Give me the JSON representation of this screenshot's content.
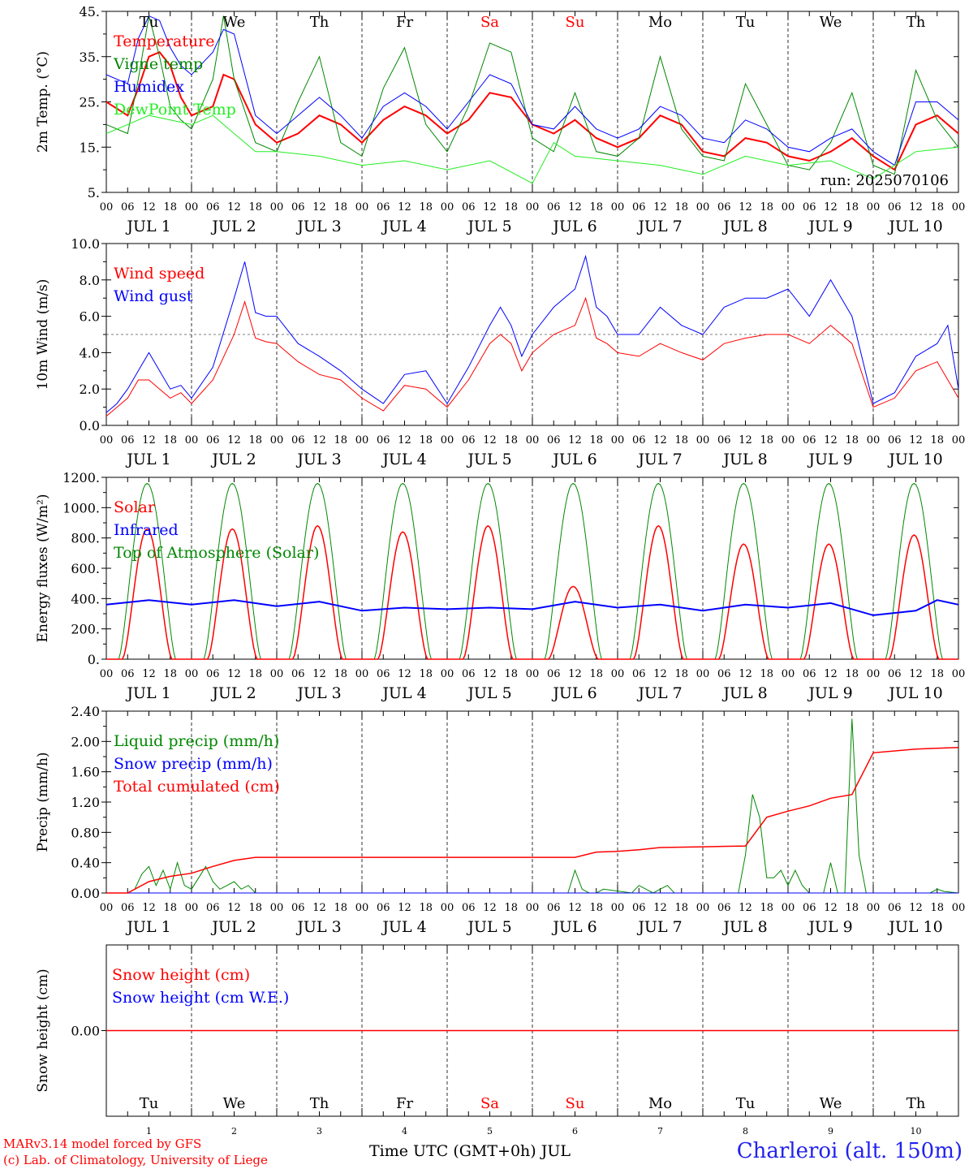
{
  "chart_data": [
    {
      "type": "line",
      "ylabel": "2m Temp. (°C)",
      "ylim": [
        5,
        45
      ],
      "yticks": [
        "5.",
        "15.",
        "25.",
        "35.",
        "45."
      ],
      "ytick_values": [
        5,
        15,
        25,
        35,
        45
      ],
      "day_labels": [
        {
          "text": "Tu",
          "color": "#000000"
        },
        {
          "text": "We",
          "color": "#000000"
        },
        {
          "text": "Th",
          "color": "#000000"
        },
        {
          "text": "Fr",
          "color": "#000000"
        },
        {
          "text": "Sa",
          "color": "#ff0000"
        },
        {
          "text": "Su",
          "color": "#ff0000"
        },
        {
          "text": "Mo",
          "color": "#000000"
        },
        {
          "text": "Tu",
          "color": "#000000"
        },
        {
          "text": "We",
          "color": "#000000"
        },
        {
          "text": "Th",
          "color": "#000000"
        }
      ],
      "annotation": "run: 2025070106",
      "legend": [
        {
          "name": "Temperature",
          "color": "#ff0000"
        },
        {
          "name": "Vigne temp",
          "color": "#008800"
        },
        {
          "name": "Humidex",
          "color": "#0000ff"
        },
        {
          "name": "DewPoint Temp",
          "color": "#22ee22"
        }
      ],
      "series": [
        {
          "name": "Temperature",
          "color": "#ff0000",
          "width": 2,
          "x": [
            0,
            6,
            9,
            12,
            15,
            18,
            21,
            24,
            30,
            33,
            36,
            42,
            48,
            54,
            60,
            66,
            72,
            78,
            84,
            90,
            96,
            102,
            108,
            114,
            120,
            126,
            132,
            138,
            144,
            150,
            156,
            162,
            168,
            174,
            180,
            186,
            192,
            198,
            204,
            210,
            216,
            222,
            228,
            234,
            240
          ],
          "y": [
            25,
            22,
            28,
            35,
            36,
            33,
            26,
            22,
            24,
            31,
            30,
            20,
            16,
            18,
            22,
            20,
            16,
            21,
            24,
            22,
            18,
            21,
            27,
            26,
            20,
            18,
            21,
            17,
            15,
            17,
            22,
            20,
            14,
            13,
            17,
            16,
            13,
            12,
            14,
            17,
            13,
            10,
            20,
            22,
            18
          ]
        },
        {
          "name": "Vigne temp",
          "color": "#008800",
          "width": 1,
          "x": [
            0,
            6,
            9,
            12,
            15,
            18,
            21,
            24,
            30,
            33,
            36,
            42,
            48,
            54,
            60,
            66,
            72,
            78,
            84,
            90,
            96,
            102,
            108,
            114,
            120,
            126,
            132,
            138,
            144,
            150,
            156,
            162,
            168,
            174,
            180,
            186,
            192,
            198,
            204,
            210,
            216,
            222,
            228,
            234,
            240
          ],
          "y": [
            20,
            18,
            30,
            44,
            35,
            24,
            21,
            19,
            30,
            44,
            30,
            16,
            14,
            25,
            35,
            16,
            13,
            28,
            37,
            20,
            14,
            24,
            38,
            36,
            17,
            14,
            27,
            14,
            13,
            17,
            35,
            19,
            13,
            12,
            29,
            20,
            11,
            10,
            16,
            27,
            11,
            9,
            32,
            21,
            15
          ]
        },
        {
          "name": "Humidex",
          "color": "#0000ff",
          "width": 1,
          "x": [
            0,
            6,
            9,
            12,
            15,
            18,
            21,
            24,
            30,
            33,
            36,
            42,
            48,
            54,
            60,
            66,
            72,
            78,
            84,
            90,
            96,
            102,
            108,
            114,
            120,
            126,
            132,
            138,
            144,
            150,
            156,
            162,
            168,
            174,
            180,
            186,
            192,
            198,
            204,
            210,
            216,
            222,
            228,
            234,
            240
          ],
          "y": [
            31,
            29,
            39,
            44,
            43,
            37,
            33,
            31,
            36,
            41,
            40,
            22,
            18,
            22,
            26,
            22,
            17,
            24,
            27,
            24,
            19,
            25,
            31,
            29,
            20,
            19,
            24,
            19,
            17,
            19,
            24,
            22,
            17,
            16,
            21,
            19,
            15,
            14,
            17,
            19,
            14,
            11,
            25,
            25,
            21
          ]
        },
        {
          "name": "DewPoint Temp",
          "color": "#22ee22",
          "width": 1,
          "x": [
            0,
            6,
            12,
            18,
            24,
            30,
            36,
            42,
            48,
            60,
            72,
            84,
            96,
            108,
            120,
            126,
            132,
            144,
            156,
            168,
            180,
            192,
            204,
            216,
            228,
            240
          ],
          "y": [
            18,
            20,
            22,
            21,
            20,
            22,
            18,
            14,
            14,
            13,
            11,
            12,
            10,
            12,
            7,
            16,
            13,
            12,
            11,
            9,
            13,
            11,
            12,
            8,
            14,
            15
          ]
        }
      ]
    },
    {
      "type": "line",
      "ylabel": "10m Wind (m/s)",
      "ylim": [
        0,
        10
      ],
      "yticks": [
        "0.0",
        "2.0",
        "4.0",
        "6.0",
        "8.0",
        "10.0"
      ],
      "ytick_values": [
        0,
        2,
        4,
        6,
        8,
        10
      ],
      "reference_line": 5,
      "legend": [
        {
          "name": "Wind speed",
          "color": "#ff0000"
        },
        {
          "name": "Wind gust",
          "color": "#0000ff"
        }
      ],
      "series": [
        {
          "name": "Wind speed",
          "color": "#ff0000",
          "width": 1,
          "x": [
            0,
            3,
            6,
            9,
            12,
            15,
            18,
            21,
            24,
            30,
            36,
            39,
            42,
            45,
            48,
            54,
            60,
            66,
            72,
            78,
            84,
            90,
            96,
            102,
            108,
            111,
            114,
            117,
            120,
            126,
            132,
            135,
            138,
            141,
            144,
            150,
            156,
            162,
            168,
            174,
            180,
            186,
            192,
            198,
            204,
            210,
            216,
            222,
            228,
            234,
            237,
            240
          ],
          "y": [
            0.5,
            1,
            1.5,
            2.5,
            2.5,
            2,
            1.5,
            1.8,
            1.2,
            2.5,
            5,
            6.8,
            4.8,
            4.6,
            4.5,
            3.5,
            2.8,
            2.5,
            1.5,
            0.8,
            2.2,
            2,
            1,
            2.5,
            4.5,
            5,
            4.5,
            3,
            4,
            5,
            5.5,
            7,
            4.8,
            4.5,
            4,
            3.8,
            4.5,
            4,
            3.6,
            4.5,
            4.8,
            5,
            5,
            4.5,
            5.5,
            4.5,
            1,
            1.5,
            3,
            3.5,
            2.5,
            1.5
          ]
        },
        {
          "name": "Wind gust",
          "color": "#0000ff",
          "width": 1,
          "x": [
            0,
            3,
            6,
            9,
            12,
            15,
            18,
            21,
            24,
            30,
            36,
            39,
            42,
            45,
            48,
            54,
            60,
            66,
            72,
            78,
            84,
            90,
            96,
            102,
            108,
            111,
            114,
            117,
            120,
            126,
            132,
            135,
            138,
            141,
            144,
            150,
            156,
            162,
            168,
            174,
            180,
            186,
            192,
            198,
            204,
            210,
            216,
            222,
            228,
            234,
            237,
            240
          ],
          "y": [
            0.7,
            1.2,
            2,
            3,
            4,
            3,
            2,
            2.2,
            1.5,
            3.2,
            7,
            9,
            6.2,
            6,
            6,
            4.5,
            3.8,
            3,
            2,
            1.2,
            2.8,
            3,
            1.2,
            3.2,
            5.5,
            6.5,
            5.5,
            3.8,
            5,
            6.5,
            7.5,
            9.3,
            6.5,
            6,
            5,
            5,
            6.5,
            5.5,
            5,
            6.5,
            7,
            7,
            7.5,
            6,
            8,
            6,
            1.2,
            1.8,
            3.8,
            4.5,
            5.5,
            2
          ]
        }
      ]
    },
    {
      "type": "line",
      "ylabel": "Energy fluxes (W/m²)",
      "ylim": [
        0,
        1200
      ],
      "yticks": [
        "0.",
        "200.",
        "400.",
        "600.",
        "800.",
        "1000.",
        "1200."
      ],
      "ytick_values": [
        0,
        200,
        400,
        600,
        800,
        1000,
        1200
      ],
      "legend": [
        {
          "name": "Solar",
          "color": "#ff0000"
        },
        {
          "name": "Infrared",
          "color": "#0000ff"
        },
        {
          "name": "Top of Atmosphere (Solar)",
          "color": "#008800"
        }
      ],
      "toa_peak": 1160,
      "solar_peaks": [
        860,
        860,
        880,
        840,
        880,
        480,
        880,
        760,
        760,
        820
      ],
      "series": [
        {
          "name": "Infrared",
          "color": "#0000ff",
          "width": 2,
          "x": [
            0,
            12,
            24,
            36,
            48,
            60,
            72,
            84,
            96,
            108,
            120,
            132,
            144,
            156,
            168,
            180,
            192,
            204,
            216,
            228,
            234,
            240
          ],
          "y": [
            360,
            390,
            360,
            390,
            350,
            380,
            320,
            340,
            330,
            340,
            330,
            380,
            340,
            360,
            320,
            360,
            340,
            370,
            290,
            320,
            390,
            360
          ]
        }
      ]
    },
    {
      "type": "line",
      "ylabel": "Precip (mm/h)",
      "ylim": [
        0,
        2.4
      ],
      "yticks": [
        "0.00",
        "0.40",
        "0.80",
        "1.20",
        "1.60",
        "2.00",
        "2.40"
      ],
      "ytick_values": [
        0,
        0.4,
        0.8,
        1.2,
        1.6,
        2.0,
        2.4
      ],
      "legend": [
        {
          "name": "Liquid precip (mm/h)",
          "color": "#008800"
        },
        {
          "name": "Snow precip (mm/h)",
          "color": "#0000ff"
        },
        {
          "name": "Total cumulated (cm)",
          "color": "#ff0000"
        }
      ],
      "series": [
        {
          "name": "Liquid precip (mm/h)",
          "color": "#008800",
          "width": 1,
          "x": [
            0,
            6,
            8,
            10,
            12,
            14,
            16,
            18,
            20,
            22,
            24,
            26,
            28,
            30,
            32,
            34,
            36,
            38,
            40,
            42,
            44,
            130,
            132,
            134,
            136,
            138,
            140,
            148,
            150,
            152,
            154,
            156,
            158,
            160,
            178,
            180,
            182,
            184,
            186,
            188,
            190,
            192,
            194,
            196,
            198,
            200,
            202,
            204,
            206,
            208,
            210,
            212,
            214,
            232,
            234,
            236,
            240
          ],
          "y": [
            0,
            0,
            0.05,
            0.25,
            0.35,
            0.1,
            0.3,
            0.05,
            0.4,
            0.1,
            0.05,
            0.2,
            0.35,
            0.15,
            0.05,
            0.1,
            0.15,
            0.05,
            0.1,
            0,
            0,
            0,
            0.3,
            0.05,
            0,
            0,
            0.05,
            0,
            0.1,
            0.05,
            0,
            0.05,
            0.1,
            0,
            0,
            0.5,
            1.3,
            1,
            0.2,
            0.2,
            0.3,
            0.1,
            0.3,
            0.1,
            0,
            0,
            0,
            0.4,
            0,
            0,
            2.3,
            0.5,
            0,
            0,
            0.05,
            0.02,
            0
          ]
        },
        {
          "name": "Snow precip (mm/h)",
          "color": "#0000ff",
          "width": 1,
          "x": [
            0,
            240
          ],
          "y": [
            0,
            0
          ]
        },
        {
          "name": "Total cumulated (cm)",
          "color": "#ff0000",
          "width": 1.5,
          "x": [
            0,
            6,
            12,
            18,
            24,
            30,
            36,
            42,
            48,
            72,
            96,
            120,
            132,
            138,
            144,
            150,
            156,
            168,
            180,
            186,
            192,
            198,
            204,
            210,
            216,
            228,
            240
          ],
          "y": [
            0,
            0,
            0.15,
            0.22,
            0.26,
            0.35,
            0.43,
            0.47,
            0.47,
            0.47,
            0.47,
            0.47,
            0.47,
            0.54,
            0.55,
            0.57,
            0.6,
            0.61,
            0.62,
            1.0,
            1.08,
            1.15,
            1.25,
            1.3,
            1.85,
            1.9,
            1.92
          ]
        }
      ]
    },
    {
      "type": "line",
      "ylabel": "Snow height (cm)",
      "ylim": [
        -1,
        1
      ],
      "yticks": [
        "0.00"
      ],
      "ytick_values": [
        0
      ],
      "legend": [
        {
          "name": "Snow height (cm)",
          "color": "#ff0000"
        },
        {
          "name": "Snow height (cm W.E.)",
          "color": "#0000ff"
        }
      ],
      "series": [
        {
          "name": "Snow height (cm)",
          "color": "#ff0000",
          "width": 1.5,
          "x": [
            0,
            240
          ],
          "y": [
            0,
            0
          ]
        }
      ]
    }
  ],
  "x_axis": {
    "hour_ticks": [
      "00",
      "06",
      "12",
      "18"
    ],
    "date_labels": [
      "JUL  1",
      "JUL  2",
      "JUL  3",
      "JUL  4",
      "JUL  5",
      "JUL  6",
      "JUL  7",
      "JUL  8",
      "JUL  9",
      "JUL 10"
    ],
    "final_tick": "00",
    "bottom_day_numbers": [
      "1",
      "2",
      "3",
      "4",
      "5",
      "6",
      "7",
      "8",
      "9",
      "10"
    ],
    "bottom_day_labels": [
      {
        "text": "Tu",
        "color": "#000000"
      },
      {
        "text": "We",
        "color": "#000000"
      },
      {
        "text": "Th",
        "color": "#000000"
      },
      {
        "text": "Fr",
        "color": "#000000"
      },
      {
        "text": "Sa",
        "color": "#ff0000"
      },
      {
        "text": "Su",
        "color": "#ff0000"
      },
      {
        "text": "Mo",
        "color": "#000000"
      },
      {
        "text": "Tu",
        "color": "#000000"
      },
      {
        "text": "We",
        "color": "#000000"
      },
      {
        "text": "Th",
        "color": "#000000"
      }
    ]
  },
  "footer": {
    "credit_line1": "MARv3.14 model forced by GFS",
    "credit_line2": "(c) Lab. of Climatology, University of Liege",
    "xlabel": "Time UTC (GMT+0h) JUL",
    "station": "Charleroi (alt. 150m)"
  }
}
